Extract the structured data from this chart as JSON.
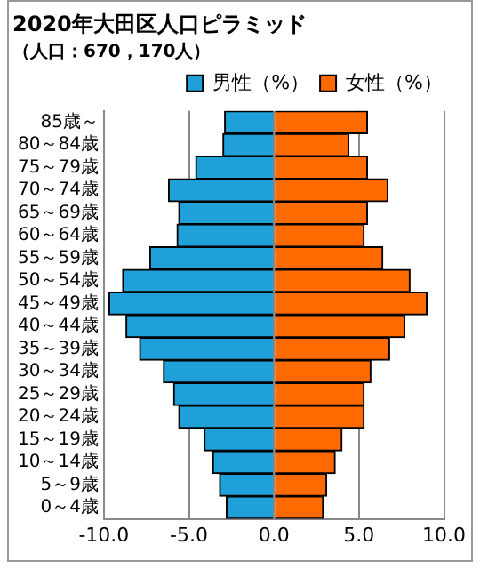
{
  "chart_data": {
    "type": "bar",
    "orientation": "horizontal",
    "stacked": true,
    "title": "2020年大田区人口ピラミッド",
    "subtitle": "（人口：670，170人）",
    "categories": [
      "85歳～",
      "80～84歳",
      "75～79歳",
      "70～74歳",
      "65～69歳",
      "60～64歳",
      "55～59歳",
      "50～54歳",
      "45～49歳",
      "40～44歳",
      "35～39歳",
      "30～34歳",
      "25～29歳",
      "20～24歳",
      "15～19歳",
      "10～14歳",
      "5～9歳",
      "0～4歳"
    ],
    "series": [
      {
        "name": "男性（%）",
        "color": "#1fa0d8",
        "values": [
          -2.9,
          -3.0,
          -4.6,
          -6.2,
          -5.6,
          -5.7,
          -7.3,
          -8.9,
          -9.7,
          -8.7,
          -7.9,
          -6.5,
          -5.9,
          -5.6,
          -4.1,
          -3.6,
          -3.2,
          -2.8
        ]
      },
      {
        "name": "女性（%）",
        "color": "#ff6a00",
        "values": [
          5.5,
          4.4,
          5.5,
          6.7,
          5.5,
          5.3,
          6.4,
          8.0,
          9.0,
          7.7,
          6.8,
          5.7,
          5.3,
          5.3,
          4.0,
          3.6,
          3.1,
          2.9
        ]
      }
    ],
    "xlim": [
      -10,
      10
    ],
    "xticks": [
      {
        "value": -10,
        "label": "-10.0"
      },
      {
        "value": -5,
        "label": "-5.0"
      },
      {
        "value": 0,
        "label": "0.0"
      },
      {
        "value": 5,
        "label": "5.0"
      },
      {
        "value": 10,
        "label": "10.0"
      }
    ],
    "grid": "x",
    "legend": "top right"
  }
}
